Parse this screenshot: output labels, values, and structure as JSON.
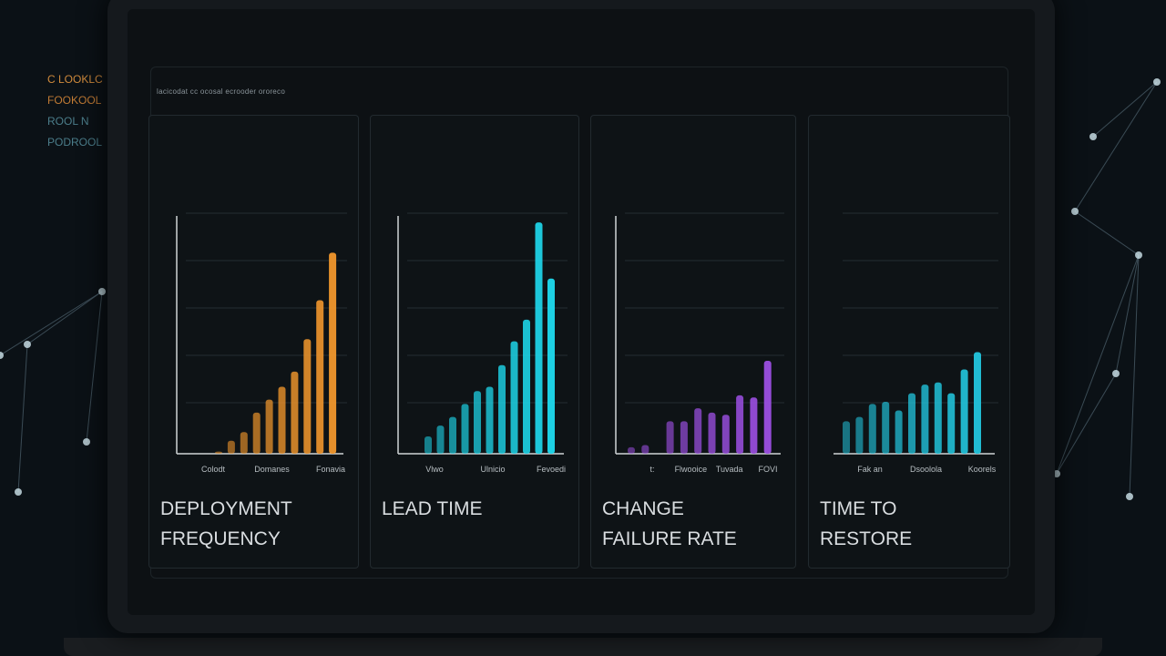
{
  "header": {
    "title": "lacicodat cc ocosal ecrooder ororeco"
  },
  "side_text": [
    "C LOOKLC",
    "FOOKOOL",
    "ROOL N",
    "PODROOL"
  ],
  "colors": {
    "orange": "#f0962c",
    "cyan": "#1ed8ec",
    "purple": "#9b4fe0",
    "teal": "#22c4dc",
    "background": "#0d1114"
  },
  "chart_data": [
    {
      "type": "bar",
      "title": "DEPLOYMENT\nFREQUENCY",
      "ylim": [
        0,
        110
      ],
      "grid": true,
      "color": "#f0962c",
      "values": [
        1,
        6,
        10,
        19,
        25,
        31,
        38,
        53,
        71,
        93
      ],
      "tick_labels": [
        "Colodt",
        "Domanes",
        "Fonavia"
      ]
    },
    {
      "type": "bar",
      "title": "LEAD TIME",
      "ylim": [
        0,
        110
      ],
      "grid": true,
      "color": "#1ed8ec",
      "values": [
        8,
        13,
        17,
        23,
        29,
        31,
        41,
        52,
        62,
        107,
        81
      ],
      "tick_labels": [
        "Vlwo",
        "Ulnicio",
        "Fevoedi"
      ]
    },
    {
      "type": "bar",
      "title": "CHANGE\nFAILURE RATE",
      "ylim": [
        0,
        110
      ],
      "grid": true,
      "color": "#9b4fe0",
      "values": [
        3,
        4,
        15,
        15,
        21,
        19,
        18,
        27,
        26,
        43
      ],
      "tick_labels": [
        "t:",
        "Flwooice",
        "Tuvada",
        "FOVI"
      ]
    },
    {
      "type": "bar",
      "title": "TIME TO\nRESTORE",
      "ylim": [
        0,
        110
      ],
      "grid": true,
      "color": "#22c4dc",
      "values": [
        15,
        17,
        23,
        24,
        20,
        28,
        32,
        33,
        28,
        39,
        47
      ],
      "tick_labels": [
        "Fak an",
        "Dsoolola",
        "Koorels"
      ]
    }
  ]
}
